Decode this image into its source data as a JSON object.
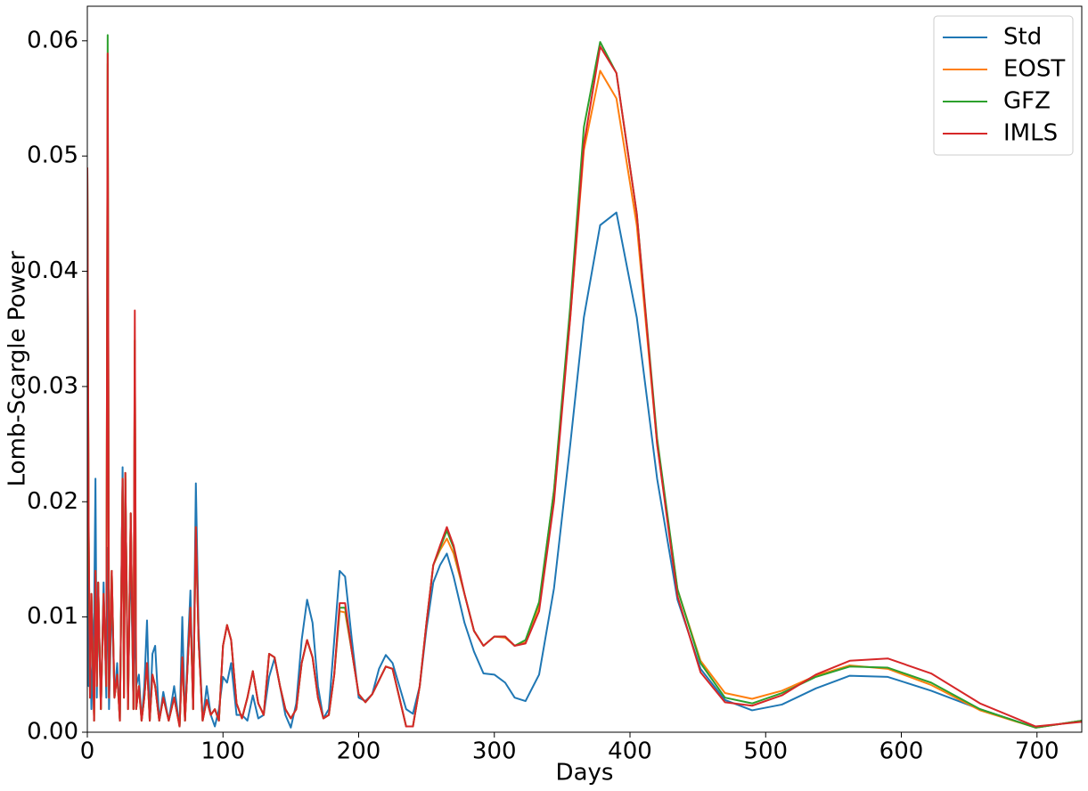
{
  "chart_data": {
    "type": "line",
    "xlabel": "Days",
    "ylabel": "Lomb-Scargle Power",
    "x": [
      0,
      1,
      2,
      3,
      5,
      6,
      7,
      8,
      10,
      12,
      14,
      15,
      16,
      18,
      20,
      22,
      24,
      26,
      27,
      28,
      30,
      32,
      34,
      35,
      36,
      38,
      40,
      42,
      44,
      46,
      48,
      50,
      53,
      56,
      60,
      64,
      68,
      70,
      72,
      74,
      76,
      78,
      80,
      82,
      85,
      88,
      91,
      94,
      97,
      100,
      103,
      106,
      110,
      114,
      118,
      122,
      126,
      130,
      134,
      138,
      142,
      146,
      150,
      154,
      158,
      162,
      166,
      170,
      174,
      178,
      182,
      186,
      190,
      195,
      200,
      205,
      210,
      215,
      220,
      225,
      230,
      235,
      240,
      245,
      250,
      255,
      260,
      265,
      270,
      278,
      285,
      292,
      300,
      308,
      315,
      323,
      333,
      344,
      356,
      366,
      378,
      390,
      405,
      420,
      435,
      452,
      470,
      490,
      512,
      537,
      562,
      590,
      622,
      658,
      699,
      733
    ],
    "series": [
      {
        "name": "Std",
        "color": "#1f77b4",
        "values": [
          0.049,
          0.004,
          0.009,
          0.002,
          0.01,
          0.022,
          0.003,
          0.012,
          0.002,
          0.013,
          0.003,
          0.016,
          0.002,
          0.012,
          0.003,
          0.006,
          0.001,
          0.023,
          0.004,
          0.022,
          0.003,
          0.016,
          0.002,
          0.013,
          0.004,
          0.005,
          0.001,
          0.004,
          0.0097,
          0.001,
          0.0068,
          0.0075,
          0.001,
          0.0035,
          0.001,
          0.004,
          0.0005,
          0.01,
          0.001,
          0.007,
          0.0123,
          0.002,
          0.0216,
          0.009,
          0.001,
          0.004,
          0.0015,
          0.0005,
          0.002,
          0.0048,
          0.0043,
          0.006,
          0.0015,
          0.0015,
          0.001,
          0.0032,
          0.0012,
          0.0015,
          0.0048,
          0.0064,
          0.004,
          0.0015,
          0.0004,
          0.0025,
          0.008,
          0.0115,
          0.0095,
          0.004,
          0.0012,
          0.002,
          0.008,
          0.014,
          0.0135,
          0.008,
          0.003,
          0.0027,
          0.0033,
          0.0055,
          0.0067,
          0.006,
          0.004,
          0.002,
          0.0016,
          0.004,
          0.009,
          0.013,
          0.0145,
          0.0155,
          0.0135,
          0.0095,
          0.007,
          0.0051,
          0.005,
          0.0043,
          0.003,
          0.0027,
          0.005,
          0.0125,
          0.025,
          0.036,
          0.044,
          0.0451,
          0.036,
          0.022,
          0.0115,
          0.0055,
          0.0028,
          0.0019,
          0.0024,
          0.0038,
          0.0049,
          0.0048,
          0.0036,
          0.002,
          0.0004,
          0.001
        ]
      },
      {
        "name": "EOST",
        "color": "#ff7f0e",
        "values": [
          0.049,
          0.017,
          0.003,
          0.012,
          0.001,
          0.014,
          0.004,
          0.013,
          0.002,
          0.012,
          0.004,
          0.058,
          0.003,
          0.014,
          0.003,
          0.005,
          0.001,
          0.022,
          0.003,
          0.0225,
          0.002,
          0.019,
          0.002,
          0.034,
          0.002,
          0.004,
          0.001,
          0.003,
          0.006,
          0.001,
          0.005,
          0.004,
          0.001,
          0.003,
          0.001,
          0.003,
          0.0005,
          0.0065,
          0.001,
          0.006,
          0.0108,
          0.002,
          0.0178,
          0.008,
          0.001,
          0.0028,
          0.0015,
          0.002,
          0.001,
          0.0075,
          0.0093,
          0.008,
          0.0025,
          0.0012,
          0.003,
          0.0053,
          0.0025,
          0.0015,
          0.0068,
          0.0065,
          0.004,
          0.002,
          0.0012,
          0.002,
          0.006,
          0.008,
          0.0065,
          0.003,
          0.0012,
          0.0015,
          0.005,
          0.0105,
          0.0104,
          0.007,
          0.0033,
          0.0026,
          0.0033,
          0.0045,
          0.0057,
          0.0055,
          0.003,
          0.0005,
          0.0005,
          0.004,
          0.0095,
          0.0145,
          0.0158,
          0.0168,
          0.0155,
          0.012,
          0.0088,
          0.0075,
          0.0083,
          0.0082,
          0.0075,
          0.0078,
          0.011,
          0.021,
          0.036,
          0.0505,
          0.0574,
          0.055,
          0.044,
          0.025,
          0.0124,
          0.0062,
          0.0034,
          0.0029,
          0.0036,
          0.0049,
          0.0058,
          0.0055,
          0.0041,
          0.0019,
          0.0004,
          0.001
        ]
      },
      {
        "name": "GFZ",
        "color": "#2ca02c",
        "values": [
          0.049,
          0.017,
          0.003,
          0.012,
          0.001,
          0.014,
          0.004,
          0.013,
          0.002,
          0.012,
          0.004,
          0.0605,
          0.003,
          0.014,
          0.003,
          0.005,
          0.001,
          0.022,
          0.003,
          0.0225,
          0.002,
          0.019,
          0.002,
          0.034,
          0.002,
          0.004,
          0.001,
          0.003,
          0.006,
          0.001,
          0.005,
          0.004,
          0.001,
          0.003,
          0.001,
          0.003,
          0.0005,
          0.0065,
          0.001,
          0.006,
          0.0108,
          0.002,
          0.0178,
          0.008,
          0.001,
          0.0028,
          0.0015,
          0.002,
          0.001,
          0.0075,
          0.0093,
          0.008,
          0.0025,
          0.0012,
          0.003,
          0.0053,
          0.0025,
          0.0015,
          0.0068,
          0.0065,
          0.004,
          0.002,
          0.0012,
          0.002,
          0.006,
          0.008,
          0.0065,
          0.003,
          0.0012,
          0.0015,
          0.005,
          0.0108,
          0.0108,
          0.007,
          0.0033,
          0.0026,
          0.0033,
          0.0045,
          0.0057,
          0.0055,
          0.003,
          0.0005,
          0.0005,
          0.004,
          0.0095,
          0.0145,
          0.016,
          0.0175,
          0.016,
          0.012,
          0.0088,
          0.0075,
          0.0083,
          0.0083,
          0.0075,
          0.008,
          0.0113,
          0.021,
          0.037,
          0.0525,
          0.0599,
          0.0572,
          0.045,
          0.0255,
          0.0124,
          0.006,
          0.003,
          0.0025,
          0.0034,
          0.0048,
          0.0057,
          0.0056,
          0.0043,
          0.002,
          0.0004,
          0.001
        ]
      },
      {
        "name": "IMLS",
        "color": "#d62728",
        "values": [
          0.049,
          0.018,
          0.003,
          0.012,
          0.001,
          0.014,
          0.004,
          0.013,
          0.002,
          0.012,
          0.004,
          0.0589,
          0.003,
          0.014,
          0.003,
          0.005,
          0.001,
          0.022,
          0.003,
          0.0225,
          0.002,
          0.019,
          0.002,
          0.0366,
          0.002,
          0.004,
          0.001,
          0.003,
          0.006,
          0.001,
          0.005,
          0.004,
          0.001,
          0.003,
          0.001,
          0.003,
          0.0005,
          0.0065,
          0.001,
          0.006,
          0.0108,
          0.002,
          0.0178,
          0.008,
          0.001,
          0.0028,
          0.0015,
          0.002,
          0.001,
          0.0075,
          0.0093,
          0.008,
          0.0025,
          0.0012,
          0.003,
          0.0053,
          0.0025,
          0.0015,
          0.0068,
          0.0065,
          0.004,
          0.002,
          0.0012,
          0.002,
          0.006,
          0.008,
          0.0065,
          0.003,
          0.0012,
          0.0015,
          0.005,
          0.0112,
          0.0112,
          0.007,
          0.0033,
          0.0026,
          0.0033,
          0.0045,
          0.0057,
          0.0055,
          0.003,
          0.0005,
          0.0005,
          0.004,
          0.0095,
          0.0145,
          0.0162,
          0.0178,
          0.0162,
          0.012,
          0.0088,
          0.0075,
          0.0083,
          0.0083,
          0.0075,
          0.0077,
          0.0105,
          0.02,
          0.036,
          0.051,
          0.0595,
          0.0572,
          0.045,
          0.025,
          0.0118,
          0.0052,
          0.0026,
          0.0023,
          0.0032,
          0.005,
          0.0062,
          0.0064,
          0.0051,
          0.0025,
          0.0005,
          0.0009
        ]
      }
    ],
    "xlim": [
      0,
      733
    ],
    "xticks": [
      0,
      100,
      200,
      300,
      400,
      500,
      600,
      700
    ],
    "ylim": [
      0,
      0.063
    ],
    "yticks": [
      {
        "value": 0,
        "label": "0.00"
      },
      0.01,
      0.02,
      0.03,
      0.04,
      0.05,
      0.06
    ],
    "legend": "upper right",
    "grid": false
  }
}
